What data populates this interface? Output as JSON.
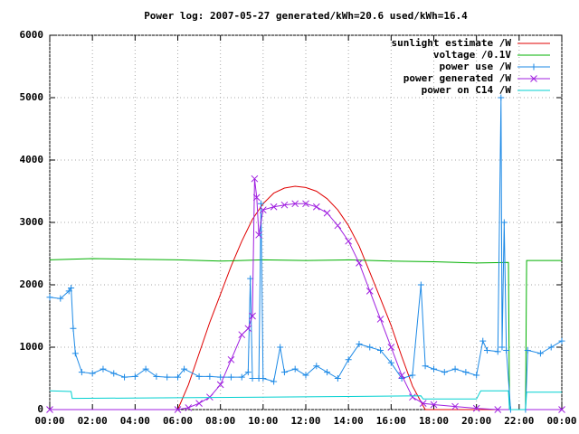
{
  "chart_data": {
    "type": "line",
    "title": "Power log: 2007-05-27 generated/kWh=20.6 used/kWh=16.4",
    "xlim": [
      0,
      24
    ],
    "xticks": [
      {
        "value": 0,
        "label": "00:00"
      },
      {
        "value": 2,
        "label": "02:00"
      },
      {
        "value": 4,
        "label": "04:00"
      },
      {
        "value": 6,
        "label": "06:00"
      },
      {
        "value": 8,
        "label": "08:00"
      },
      {
        "value": 10,
        "label": "10:00"
      },
      {
        "value": 12,
        "label": "12:00"
      },
      {
        "value": 14,
        "label": "14:00"
      },
      {
        "value": 16,
        "label": "16:00"
      },
      {
        "value": 18,
        "label": "18:00"
      },
      {
        "value": 20,
        "label": "20:00"
      },
      {
        "value": 22,
        "label": "22:00"
      },
      {
        "value": 24,
        "label": "00:00"
      }
    ],
    "ylim": [
      0,
      6000
    ],
    "yticks": [
      0,
      1000,
      2000,
      3000,
      4000,
      5000,
      6000
    ],
    "grid": true,
    "legend": "top-right",
    "series": [
      {
        "name": "sunlight estimate /W",
        "color": "#e00000",
        "marker": "none",
        "x": [
          0,
          6,
          6.5,
          7,
          7.5,
          8,
          8.5,
          9,
          9.5,
          10,
          10.5,
          11,
          11.5,
          12,
          12.5,
          13,
          13.5,
          14,
          14.5,
          15,
          15.5,
          16,
          16.5,
          17,
          17.5,
          17.6,
          24
        ],
        "values": [
          0,
          0,
          400,
          900,
          1400,
          1850,
          2300,
          2700,
          3050,
          3300,
          3470,
          3550,
          3580,
          3560,
          3500,
          3380,
          3200,
          2950,
          2620,
          2200,
          1780,
          1350,
          850,
          380,
          60,
          0,
          0
        ]
      },
      {
        "name": "voltage /0.1V",
        "color": "#00b000",
        "marker": "none",
        "x": [
          0,
          2,
          4,
          6,
          8,
          10,
          12,
          14,
          16,
          18,
          20,
          21.5,
          21.55,
          22.3,
          22.35,
          24
        ],
        "values": [
          2400,
          2420,
          2410,
          2400,
          2380,
          2400,
          2390,
          2400,
          2380,
          2370,
          2350,
          2360,
          0,
          0,
          2390,
          2390
        ]
      },
      {
        "name": "power use /W",
        "color": "#1e8ae6",
        "marker": "plus",
        "x": [
          0,
          0.5,
          0.9,
          1.0,
          1.1,
          1.2,
          1.5,
          2,
          2.5,
          3,
          3.5,
          4,
          4.5,
          5,
          5.5,
          6,
          6.3,
          7,
          7.5,
          8,
          8.5,
          9,
          9.3,
          9.4,
          9.5,
          9.8,
          9.9,
          10,
          10.5,
          10.8,
          11,
          11.5,
          12,
          12.5,
          13,
          13.5,
          14,
          14.5,
          15,
          15.5,
          16,
          16.5,
          17,
          17.4,
          17.6,
          18,
          18.5,
          19,
          19.5,
          20,
          20.3,
          20.5,
          21,
          21.15,
          21.2,
          21.3,
          21.4,
          21.6,
          22.3,
          22.4,
          23,
          23.5,
          24
        ],
        "values": [
          1800,
          1780,
          1900,
          1950,
          1300,
          900,
          600,
          580,
          650,
          580,
          520,
          530,
          650,
          530,
          520,
          520,
          650,
          530,
          530,
          520,
          520,
          520,
          600,
          2100,
          500,
          500,
          3300,
          500,
          450,
          1000,
          600,
          650,
          550,
          700,
          600,
          500,
          800,
          1050,
          1000,
          950,
          750,
          500,
          550,
          2000,
          700,
          650,
          600,
          650,
          600,
          550,
          1100,
          950,
          930,
          5000,
          1000,
          3000,
          950,
          0,
          0,
          950,
          900,
          1000,
          1100
        ]
      },
      {
        "name": "power generated /W",
        "color": "#a020e0",
        "marker": "cross",
        "x": [
          0,
          6,
          6.5,
          7,
          7.5,
          8,
          8.5,
          9,
          9.3,
          9.5,
          9.6,
          9.7,
          9.8,
          10,
          10.5,
          11,
          11.5,
          12,
          12.5,
          13,
          13.5,
          14,
          14.5,
          15,
          15.5,
          16,
          16.5,
          17,
          17.5,
          18,
          19,
          20,
          21,
          24
        ],
        "values": [
          0,
          0,
          30,
          100,
          200,
          400,
          800,
          1200,
          1300,
          1500,
          3700,
          3400,
          2800,
          3200,
          3250,
          3280,
          3300,
          3300,
          3250,
          3150,
          2950,
          2700,
          2350,
          1900,
          1450,
          1000,
          550,
          200,
          100,
          80,
          50,
          20,
          0,
          0
        ]
      },
      {
        "name": "power on C14 /W",
        "color": "#00d0d0",
        "marker": "none",
        "x": [
          0,
          1,
          1.05,
          6,
          10,
          14,
          17.4,
          17.5,
          20,
          20.2,
          21.5,
          21.55,
          22.3,
          22.35,
          24
        ],
        "values": [
          300,
          290,
          180,
          190,
          200,
          210,
          220,
          170,
          170,
          300,
          300,
          0,
          0,
          280,
          280
        ]
      }
    ]
  }
}
